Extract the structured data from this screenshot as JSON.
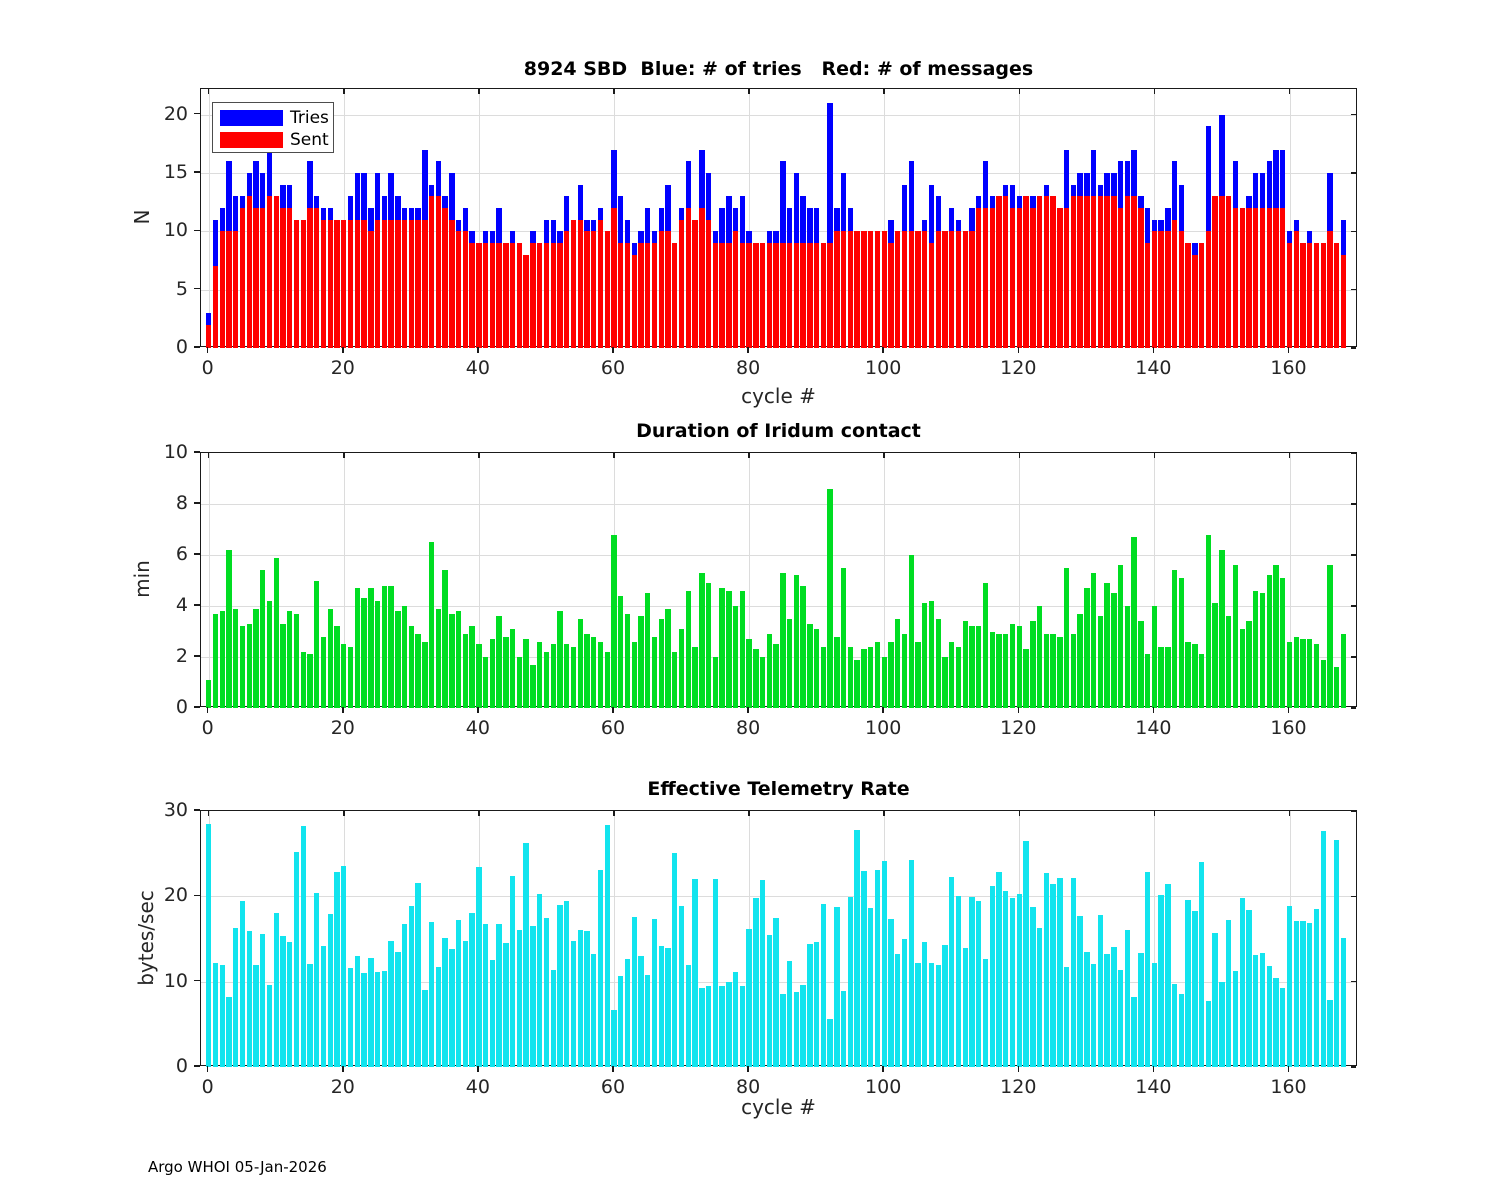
{
  "page": {
    "background": "#ffffff",
    "footer": "Argo WHOI 05-Jan-2026"
  },
  "legend": {
    "entries": [
      {
        "label": "Tries",
        "color": "#0000ff"
      },
      {
        "label": "Sent",
        "color": "#ff0000"
      }
    ]
  },
  "chart_data": [
    {
      "id": "sbd",
      "type": "bar",
      "title": "8924 SBD  Blue: # of tries   Red: # of messages",
      "xlabel": "cycle #",
      "ylabel": "N",
      "xlim": [
        -1.2,
        170
      ],
      "ylim": [
        0,
        22.2
      ],
      "xticks": [
        0,
        20,
        40,
        60,
        80,
        100,
        120,
        140,
        160
      ],
      "yticks": [
        0,
        5,
        10,
        15,
        20
      ],
      "grid": true,
      "legend_position": "upper-left",
      "x_start": 0,
      "series": [
        {
          "name": "Tries",
          "color": "#0000ff",
          "values": [
            3,
            11,
            12,
            16,
            13,
            13,
            15,
            16,
            15,
            17,
            13,
            14,
            14,
            11,
            11,
            16,
            13,
            12,
            12,
            11,
            11,
            13,
            15,
            15,
            12,
            15,
            13,
            15,
            13,
            12,
            12,
            12,
            17,
            14,
            16,
            13,
            15,
            11,
            12,
            10,
            9,
            10,
            10,
            12,
            9,
            10,
            9,
            8,
            10,
            9,
            11,
            11,
            10,
            13,
            11,
            14,
            11,
            11,
            12,
            10,
            17,
            13,
            11,
            9,
            10,
            12,
            10,
            12,
            14,
            9,
            12,
            16,
            11,
            17,
            15,
            10,
            12,
            13,
            12,
            13,
            10,
            9,
            9,
            10,
            10,
            16,
            12,
            15,
            13,
            12,
            12,
            9,
            21,
            12,
            15,
            12,
            10,
            10,
            10,
            10,
            10,
            11,
            10,
            14,
            16,
            10,
            11,
            14,
            13,
            10,
            12,
            11,
            10,
            12,
            13,
            16,
            13,
            13,
            14,
            14,
            13,
            13,
            13,
            13,
            14,
            13,
            12,
            17,
            14,
            15,
            15,
            17,
            14,
            15,
            15,
            16,
            16,
            17,
            13,
            12,
            11,
            11,
            12,
            16,
            14,
            9,
            9,
            9,
            19,
            13,
            20,
            13,
            16,
            12,
            13,
            15,
            15,
            16,
            17,
            17,
            10,
            11,
            9,
            10,
            9,
            9,
            15,
            9,
            11
          ]
        },
        {
          "name": "Sent",
          "color": "#ff0000",
          "values": [
            2,
            7,
            10,
            10,
            10,
            12,
            13,
            12,
            12,
            13,
            13,
            12,
            12,
            11,
            11,
            12,
            12,
            11,
            11,
            11,
            11,
            11,
            11,
            11,
            10,
            11,
            11,
            11,
            11,
            11,
            11,
            11,
            11,
            13,
            13,
            12,
            11,
            10,
            10,
            9,
            9,
            9,
            9,
            9,
            9,
            9,
            9,
            8,
            9,
            9,
            9,
            9,
            9,
            10,
            11,
            11,
            10,
            10,
            11,
            10,
            12,
            9,
            9,
            8,
            9,
            9,
            9,
            10,
            10,
            9,
            11,
            12,
            11,
            12,
            11,
            9,
            9,
            9,
            10,
            9,
            9,
            9,
            9,
            9,
            9,
            9,
            9,
            9,
            9,
            9,
            9,
            9,
            9,
            10,
            10,
            10,
            10,
            10,
            10,
            10,
            10,
            9,
            10,
            10,
            10,
            10,
            10,
            9,
            10,
            10,
            10,
            10,
            10,
            10,
            12,
            12,
            12,
            13,
            13,
            12,
            12,
            13,
            12,
            13,
            13,
            13,
            12,
            12,
            13,
            13,
            13,
            13,
            13,
            13,
            13,
            12,
            13,
            13,
            12,
            9,
            10,
            10,
            10,
            11,
            10,
            9,
            8,
            9,
            10,
            13,
            13,
            13,
            12,
            12,
            12,
            12,
            12,
            12,
            12,
            12,
            9,
            10,
            9,
            9,
            9,
            9,
            10,
            9,
            8
          ]
        }
      ]
    },
    {
      "id": "dur",
      "type": "bar",
      "title": "Duration of Iridum contact",
      "xlabel": "",
      "ylabel": "min",
      "xlim": [
        -1.2,
        170
      ],
      "ylim": [
        0,
        10
      ],
      "xticks": [
        0,
        20,
        40,
        60,
        80,
        100,
        120,
        140,
        160
      ],
      "yticks": [
        0,
        2,
        4,
        6,
        8,
        10
      ],
      "grid": true,
      "x_start": 0,
      "series": [
        {
          "name": "Duration",
          "color": "#00dd22",
          "values": [
            1.1,
            3.7,
            3.8,
            6.2,
            3.9,
            3.2,
            3.3,
            3.9,
            5.4,
            4.2,
            5.9,
            3.3,
            3.8,
            3.7,
            2.2,
            2.1,
            5.0,
            2.8,
            3.9,
            3.2,
            2.5,
            2.4,
            4.7,
            4.3,
            4.7,
            4.2,
            4.8,
            4.8,
            3.8,
            4.0,
            3.2,
            2.9,
            2.6,
            6.5,
            3.9,
            5.4,
            3.7,
            3.8,
            2.9,
            3.2,
            2.5,
            2.0,
            2.7,
            3.6,
            2.8,
            3.1,
            2.0,
            2.7,
            1.7,
            2.6,
            2.2,
            2.5,
            3.8,
            2.5,
            2.4,
            3.5,
            2.9,
            2.8,
            2.6,
            2.2,
            6.8,
            4.4,
            3.7,
            2.6,
            3.6,
            4.5,
            2.8,
            3.5,
            3.9,
            2.2,
            3.1,
            4.6,
            2.4,
            5.3,
            4.9,
            2.0,
            4.7,
            4.6,
            4.0,
            4.6,
            2.7,
            2.3,
            2.0,
            2.9,
            2.5,
            5.3,
            3.5,
            5.2,
            4.8,
            3.3,
            3.1,
            2.4,
            8.6,
            2.8,
            5.5,
            2.4,
            1.9,
            2.3,
            2.4,
            2.6,
            2.0,
            2.6,
            3.5,
            2.9,
            6.0,
            2.6,
            4.1,
            4.2,
            3.5,
            2.0,
            2.6,
            2.4,
            3.4,
            3.2,
            3.2,
            4.9,
            3.0,
            2.9,
            2.9,
            3.3,
            3.2,
            2.3,
            3.4,
            4.0,
            2.9,
            2.9,
            2.8,
            5.5,
            2.9,
            3.7,
            4.7,
            5.3,
            3.6,
            4.9,
            4.5,
            5.6,
            4.0,
            6.7,
            3.4,
            2.1,
            4.0,
            2.4,
            2.4,
            5.4,
            5.1,
            2.6,
            2.5,
            2.1,
            6.8,
            4.1,
            6.2,
            3.6,
            5.6,
            3.1,
            3.4,
            4.6,
            4.5,
            5.2,
            5.6,
            5.1,
            2.6,
            2.8,
            2.7,
            2.7,
            2.5,
            1.9,
            5.6,
            1.6,
            2.9
          ]
        }
      ]
    },
    {
      "id": "rate",
      "type": "bar",
      "title": "Effective Telemetry Rate",
      "xlabel": "cycle #",
      "ylabel": "bytes/sec",
      "xlim": [
        -1.2,
        170
      ],
      "ylim": [
        0,
        30
      ],
      "xticks": [
        0,
        20,
        40,
        60,
        80,
        100,
        120,
        140,
        160
      ],
      "yticks": [
        0,
        10,
        20,
        30
      ],
      "grid": true,
      "x_start": 0,
      "series": [
        {
          "name": "Rate",
          "color": "#12e4ee",
          "values": [
            28.5,
            12.2,
            12.0,
            8.2,
            16.3,
            19.5,
            15.9,
            11.9,
            15.6,
            9.6,
            18.1,
            15.4,
            14.7,
            25.2,
            28.3,
            12.1,
            20.4,
            14.2,
            17.9,
            22.9,
            23.6,
            11.6,
            13.0,
            11.0,
            12.8,
            11.1,
            11.2,
            14.8,
            13.5,
            16.8,
            18.9,
            21.6,
            9.0,
            17.0,
            11.7,
            15.1,
            13.8,
            17.2,
            14.8,
            18.0,
            23.4,
            16.8,
            12.5,
            16.8,
            14.5,
            22.4,
            16.0,
            26.3,
            16.5,
            20.3,
            17.5,
            11.4,
            19.0,
            19.5,
            14.8,
            16.0,
            15.9,
            13.2,
            23.1,
            28.4,
            6.7,
            10.7,
            12.7,
            17.6,
            13.0,
            10.8,
            17.3,
            14.2,
            14.0,
            25.1,
            18.9,
            12.0,
            22.0,
            9.3,
            9.5,
            22.0,
            9.5,
            10.0,
            11.1,
            9.5,
            16.2,
            19.8,
            21.9,
            15.5,
            17.5,
            8.5,
            12.4,
            8.8,
            9.6,
            14.4,
            14.7,
            19.1,
            5.6,
            18.7,
            8.9,
            19.9,
            27.8,
            23.0,
            18.6,
            23.1,
            24.1,
            17.4,
            13.2,
            15.0,
            24.2,
            12.2,
            14.7,
            12.2,
            12.0,
            14.3,
            22.3,
            20.0,
            14.0,
            19.9,
            19.5,
            12.6,
            21.2,
            22.9,
            20.6,
            19.8,
            20.3,
            26.5,
            18.8,
            16.3,
            22.7,
            21.4,
            22.2,
            11.7,
            22.2,
            17.7,
            13.5,
            12.1,
            17.8,
            13.3,
            14.1,
            11.4,
            16.1,
            8.2,
            13.4,
            22.9,
            12.2,
            20.1,
            21.4,
            9.7,
            8.6,
            19.6,
            18.3,
            24.0,
            7.7,
            15.7,
            10.0,
            17.2,
            11.3,
            19.8,
            18.4,
            13.1,
            13.4,
            11.8,
            10.4,
            9.3,
            18.9,
            17.1,
            17.1,
            16.9,
            18.5,
            27.7,
            7.8,
            26.6,
            15.1
          ]
        }
      ]
    }
  ]
}
